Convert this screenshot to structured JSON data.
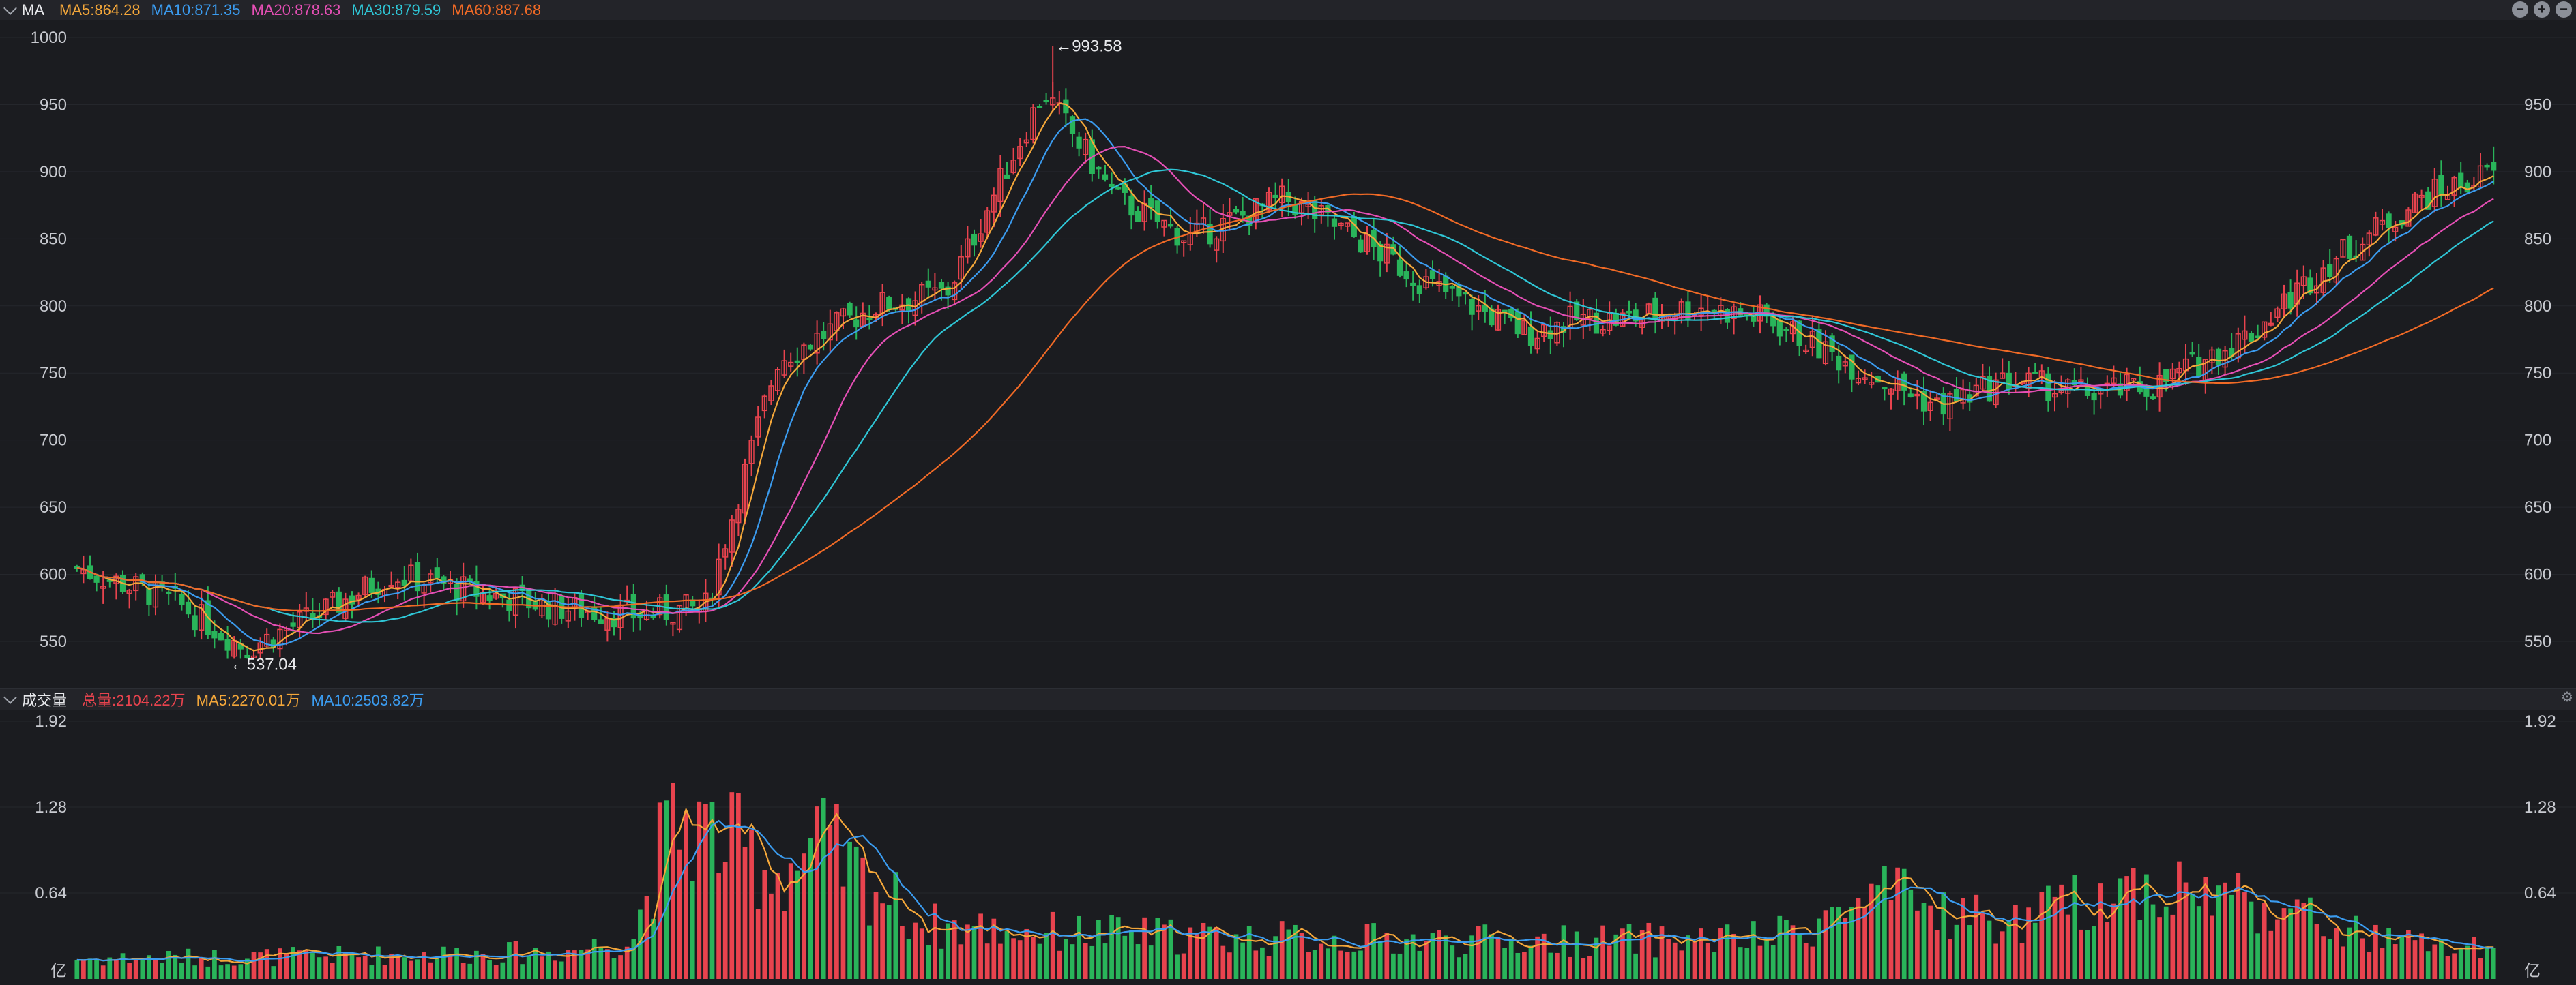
{
  "price_panel": {
    "title": "MA",
    "ma": [
      {
        "label": "MA5:864.28",
        "color": "#f4a73a"
      },
      {
        "label": "MA10:871.35",
        "color": "#3b9cf0"
      },
      {
        "label": "MA20:878.63",
        "color": "#e54fb5"
      },
      {
        "label": "MA30:879.59",
        "color": "#2fc6d6"
      },
      {
        "label": "MA60:887.68",
        "color": "#f06a26"
      }
    ],
    "high_marker": "993.58",
    "low_marker": "537.04"
  },
  "volume_panel": {
    "title": "成交量",
    "items": [
      {
        "label": "总量:2104.22万",
        "color": "#e8434e"
      },
      {
        "label": "MA5:2270.01万",
        "color": "#f4a73a"
      },
      {
        "label": "MA10:2503.82万",
        "color": "#3b9cf0"
      }
    ],
    "unit": "亿"
  },
  "chart_data": [
    {
      "type": "candlestick",
      "ylim": [
        520,
        1000
      ],
      "yticks": [
        "1000",
        "950",
        "900",
        "850",
        "800",
        "750",
        "700",
        "650",
        "600",
        "550"
      ],
      "up_color": "#e8434e",
      "down_color": "#29b45a",
      "trend_x": [
        0,
        4,
        7,
        10,
        13,
        17,
        20,
        23,
        26,
        29,
        33,
        36,
        40,
        43,
        46,
        50,
        53,
        56,
        60,
        62,
        64,
        67,
        70,
        73,
        77,
        80,
        83,
        86,
        90,
        93,
        97,
        100
      ],
      "trend_close": [
        605,
        580,
        545,
        570,
        600,
        585,
        575,
        570,
        575,
        760,
        800,
        810,
        960,
        880,
        850,
        880,
        850,
        815,
        780,
        790,
        790,
        800,
        790,
        760,
        725,
        745,
        735,
        740,
        780,
        830,
        880,
        900
      ],
      "max_label": "993.58",
      "min_label": "537.04"
    },
    {
      "type": "bar",
      "ylim": [
        0,
        1.92
      ],
      "yticks": [
        "1.92",
        "1.28",
        "0.64"
      ],
      "unit": "亿",
      "trend_x": [
        0,
        10,
        20,
        23,
        24,
        25,
        27,
        29,
        30,
        31,
        32,
        33,
        35,
        40,
        50,
        60,
        70,
        73,
        75,
        80,
        85,
        90,
        93,
        95,
        100
      ],
      "trend_vol": [
        0.15,
        0.17,
        0.2,
        0.3,
        0.9,
        1.2,
        1.0,
        0.8,
        0.9,
        1.0,
        0.8,
        0.7,
        0.4,
        0.35,
        0.3,
        0.28,
        0.3,
        0.5,
        0.6,
        0.4,
        0.7,
        0.6,
        0.4,
        0.3,
        0.2
      ]
    }
  ]
}
